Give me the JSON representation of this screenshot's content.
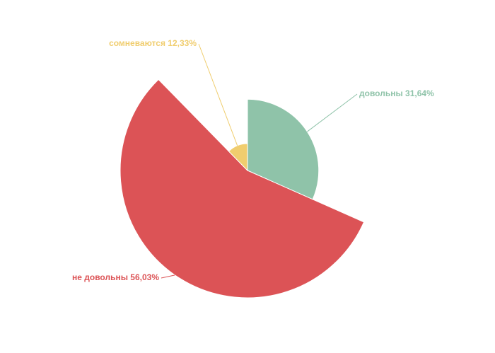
{
  "chart_data": {
    "type": "rose-pie",
    "series": [
      {
        "name": "довольны",
        "color": "#8fc3a9",
        "values": [
          31.64
        ],
        "value_labels": [
          "31,64%"
        ]
      },
      {
        "name": "не довольны",
        "color": "#dc5356",
        "values": [
          56.03
        ],
        "value_labels": [
          "56,03%"
        ]
      },
      {
        "name": "сомневаются",
        "color": "#f0cd6e",
        "values": [
          12.33
        ],
        "value_labels": [
          "12,33%"
        ]
      }
    ]
  }
}
